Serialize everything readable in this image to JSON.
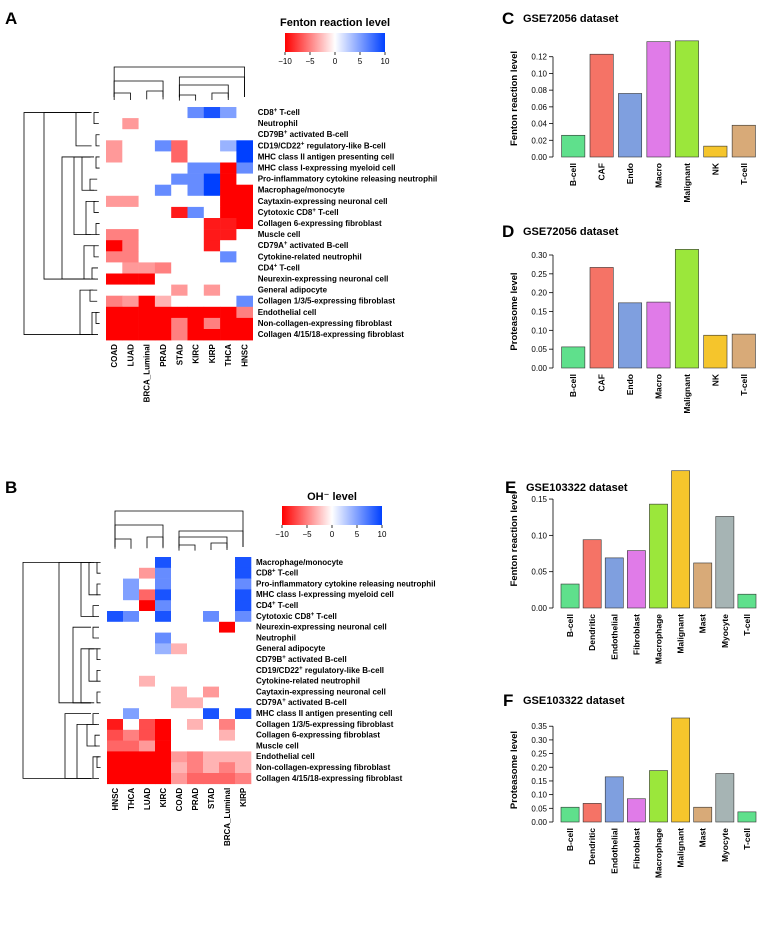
{
  "heatmaps": [
    {
      "letter": "A",
      "legend_title": "Fenton reaction level",
      "legend_ticks": [
        "−10",
        "−5",
        "0",
        "5",
        "10"
      ],
      "columns": [
        "COAD",
        "LUAD",
        "BRCA_Luminal",
        "PRAD",
        "STAD",
        "KIRC",
        "KIRP",
        "THCA",
        "HNSC"
      ],
      "rows": [
        {
          "base": "CD8",
          "sup": "+",
          "rest": " T-cell"
        },
        {
          "base": "Neutrophil",
          "sup": "",
          "rest": ""
        },
        {
          "base": "CD79B",
          "sup": "+",
          "rest": " activated B-cell"
        },
        {
          "base": "CD19/CD22",
          "sup": "+",
          "rest": " regulatory-like B-cell"
        },
        {
          "base": "MHC class II antigen presenting cell",
          "sup": "",
          "rest": ""
        },
        {
          "base": "MHC class I-expressing myeloid cell",
          "sup": "",
          "rest": ""
        },
        {
          "base": "Pro-inflammatory cytokine releasing neutrophil",
          "sup": "",
          "rest": ""
        },
        {
          "base": "Macrophage/monocyte",
          "sup": "",
          "rest": ""
        },
        {
          "base": "Caytaxin-expressing neuronal cell",
          "sup": "",
          "rest": ""
        },
        {
          "base": "Cytotoxic CD8",
          "sup": "+",
          "rest": " T-cell"
        },
        {
          "base": "Collagen 6-expressing fibroblast",
          "sup": "",
          "rest": ""
        },
        {
          "base": "Muscle cell",
          "sup": "",
          "rest": ""
        },
        {
          "base": "CD79A",
          "sup": "+",
          "rest": " activated B-cell"
        },
        {
          "base": "Cytokine-related neutrophil",
          "sup": "",
          "rest": ""
        },
        {
          "base": "CD4",
          "sup": "+",
          "rest": " T-cell"
        },
        {
          "base": "Neurexin-expressing neuronal cell",
          "sup": "",
          "rest": ""
        },
        {
          "base": "General adipocyte",
          "sup": "",
          "rest": ""
        },
        {
          "base": "Collagen 1/3/5-expressing fibroblast",
          "sup": "",
          "rest": ""
        },
        {
          "base": "Endothelial cell",
          "sup": "",
          "rest": ""
        },
        {
          "base": "Non-collagen-expressing fibroblast",
          "sup": "",
          "rest": ""
        },
        {
          "base": "Collagen 4/15/18-expressing fibroblast",
          "sup": "",
          "rest": ""
        }
      ],
      "values": [
        [
          0,
          0,
          0,
          0,
          0,
          6,
          9,
          5,
          0
        ],
        [
          0,
          -4,
          0,
          0,
          0,
          0,
          0,
          0,
          0
        ],
        [
          0,
          0,
          0,
          0,
          0,
          0,
          0,
          0,
          0
        ],
        [
          -4,
          0,
          0,
          6,
          -6,
          0,
          0,
          4,
          10
        ],
        [
          -4,
          0,
          0,
          0,
          -6,
          0,
          0,
          0,
          10
        ],
        [
          0,
          0,
          0,
          0,
          0,
          6,
          6,
          -10,
          6
        ],
        [
          0,
          0,
          0,
          0,
          6,
          6,
          10,
          -10,
          0
        ],
        [
          0,
          0,
          0,
          6,
          0,
          6,
          10,
          -10,
          -10
        ],
        [
          -4,
          -4,
          0,
          0,
          0,
          0,
          0,
          -10,
          -10
        ],
        [
          0,
          0,
          0,
          0,
          -9,
          6,
          0,
          -10,
          -10
        ],
        [
          0,
          0,
          0,
          0,
          0,
          0,
          -9,
          -9,
          -10
        ],
        [
          -5,
          -5,
          0,
          0,
          0,
          0,
          -9,
          -9,
          0
        ],
        [
          -10,
          -5,
          0,
          0,
          0,
          0,
          -9,
          0,
          0
        ],
        [
          -5,
          -5,
          0,
          0,
          0,
          0,
          0,
          6,
          0
        ],
        [
          0,
          -4,
          -4,
          -5,
          0,
          0,
          0,
          0,
          0
        ],
        [
          -10,
          -10,
          -10,
          0,
          0,
          0,
          0,
          0,
          0
        ],
        [
          0,
          0,
          0,
          0,
          -4,
          0,
          -4,
          0,
          0
        ],
        [
          -5,
          -4,
          -10,
          -3,
          0,
          0,
          0,
          0,
          6
        ],
        [
          -10,
          -10,
          -10,
          -10,
          -10,
          -10,
          -10,
          -10,
          -5
        ],
        [
          -10,
          -10,
          -10,
          -10,
          -5,
          -10,
          -5,
          -10,
          -10
        ],
        [
          -10,
          -10,
          -10,
          -10,
          -5,
          -10,
          -10,
          -10,
          -10
        ]
      ]
    },
    {
      "letter": "B",
      "legend_title": "OH⁻ level",
      "legend_ticks": [
        "−10",
        "−5",
        "0",
        "5",
        "10"
      ],
      "columns": [
        "HNSC",
        "THCA",
        "LUAD",
        "KIRC",
        "COAD",
        "PRAD",
        "STAD",
        "BRCA_Luminal",
        "KIRP"
      ],
      "rows": [
        {
          "base": "Macrophage/monocyte",
          "sup": "",
          "rest": ""
        },
        {
          "base": "CD8",
          "sup": "+",
          "rest": " T-cell"
        },
        {
          "base": "Pro-inflammatory cytokine releasing neutrophil",
          "sup": "",
          "rest": ""
        },
        {
          "base": "MHC class I-expressing myeloid cell",
          "sup": "",
          "rest": ""
        },
        {
          "base": "CD4",
          "sup": "+",
          "rest": " T-cell"
        },
        {
          "base": "Cytotoxic CD8",
          "sup": "+",
          "rest": " T-cell"
        },
        {
          "base": "Neurexin-expressing neuronal cell",
          "sup": "",
          "rest": ""
        },
        {
          "base": "Neutrophil",
          "sup": "",
          "rest": ""
        },
        {
          "base": "General adipocyte",
          "sup": "",
          "rest": ""
        },
        {
          "base": "CD79B",
          "sup": "+",
          "rest": " activated B-cell"
        },
        {
          "base": "CD19/CD22",
          "sup": "+",
          "rest": " regulatory-like B-cell"
        },
        {
          "base": "Cytokine-related neutrophil",
          "sup": "",
          "rest": ""
        },
        {
          "base": "Caytaxin-expressing neuronal cell",
          "sup": "",
          "rest": ""
        },
        {
          "base": "CD79A",
          "sup": "+",
          "rest": " activated B-cell"
        },
        {
          "base": "MHC class II antigen presenting cell",
          "sup": "",
          "rest": ""
        },
        {
          "base": "Collagen 1/3/5-expressing fibroblast",
          "sup": "",
          "rest": ""
        },
        {
          "base": "Collagen 6-expressing fibroblast",
          "sup": "",
          "rest": ""
        },
        {
          "base": "Muscle cell",
          "sup": "",
          "rest": ""
        },
        {
          "base": "Endothelial cell",
          "sup": "",
          "rest": ""
        },
        {
          "base": "Non-collagen-expressing fibroblast",
          "sup": "",
          "rest": ""
        },
        {
          "base": "Collagen 4/15/18-expressing fibroblast",
          "sup": "",
          "rest": ""
        }
      ],
      "values": [
        [
          0,
          0,
          0,
          9,
          0,
          0,
          0,
          0,
          9
        ],
        [
          0,
          0,
          -4,
          6,
          0,
          0,
          0,
          0,
          9
        ],
        [
          0,
          5,
          0,
          6,
          0,
          0,
          0,
          0,
          6
        ],
        [
          0,
          5,
          -6,
          9,
          0,
          0,
          0,
          0,
          9
        ],
        [
          0,
          0,
          -10,
          6,
          0,
          0,
          0,
          0,
          9
        ],
        [
          9,
          6,
          0,
          9,
          0,
          0,
          6,
          0,
          6
        ],
        [
          0,
          0,
          0,
          0,
          0,
          0,
          0,
          -10,
          0
        ],
        [
          0,
          0,
          0,
          6,
          0,
          0,
          0,
          0,
          0
        ],
        [
          0,
          0,
          0,
          4,
          -3,
          0,
          0,
          0,
          0
        ],
        [
          0,
          0,
          0,
          0,
          0,
          0,
          0,
          0,
          0
        ],
        [
          0,
          0,
          0,
          0,
          0,
          0,
          0,
          0,
          0
        ],
        [
          0,
          0,
          -3,
          0,
          0,
          0,
          0,
          0,
          0
        ],
        [
          0,
          0,
          0,
          0,
          -3,
          0,
          -4,
          0,
          0
        ],
        [
          0,
          0,
          0,
          0,
          -3,
          -3,
          0,
          0,
          0
        ],
        [
          0,
          5,
          0,
          0,
          0,
          0,
          9,
          0,
          9
        ],
        [
          -9,
          0,
          -7,
          -10,
          0,
          -3,
          0,
          -5,
          0
        ],
        [
          -7,
          -5,
          -7,
          -10,
          0,
          0,
          0,
          -3,
          0
        ],
        [
          -6,
          -6,
          -4,
          -10,
          0,
          0,
          0,
          0,
          0
        ],
        [
          -10,
          -10,
          -10,
          -10,
          -4,
          -5,
          -3,
          -3,
          -3
        ],
        [
          -10,
          -10,
          -10,
          -10,
          -3,
          -5,
          -3,
          -5,
          -3
        ],
        [
          -10,
          -10,
          -10,
          -10,
          -4,
          -6,
          -6,
          -6,
          -5
        ]
      ]
    }
  ],
  "chart_data": [
    {
      "type": "bar",
      "letter": "C",
      "title": "GSE72056 dataset",
      "ylabel": "Fenton reaction level",
      "xlabel": "",
      "categories": [
        "B-cell",
        "CAF",
        "Endo",
        "Macro",
        "Malignant",
        "NK",
        "T-cell"
      ],
      "values": [
        0.026,
        0.123,
        0.076,
        0.138,
        0.139,
        0.013,
        0.038
      ],
      "colors": [
        "#5fe08c",
        "#f57366",
        "#7f9fdf",
        "#e07be8",
        "#9be73b",
        "#f5c52c",
        "#d8aa78"
      ],
      "ylim": [
        0,
        0.14
      ],
      "yticks": [
        0.0,
        0.02,
        0.04,
        0.06,
        0.08,
        0.1,
        0.12
      ],
      "yticklabels": [
        "0.00",
        "0.02",
        "0.04",
        "0.06",
        "0.08",
        "0.10",
        "0.12"
      ]
    },
    {
      "type": "bar",
      "letter": "D",
      "title": "GSE72056 dataset",
      "ylabel": "Proteasome level",
      "xlabel": "",
      "categories": [
        "B-cell",
        "CAF",
        "Endo",
        "Macro",
        "Malignant",
        "NK",
        "T-cell"
      ],
      "values": [
        0.056,
        0.267,
        0.173,
        0.175,
        0.315,
        0.087,
        0.09
      ],
      "colors": [
        "#5fe08c",
        "#f57366",
        "#7f9fdf",
        "#e07be8",
        "#9be73b",
        "#f5c52c",
        "#d8aa78"
      ],
      "ylim": [
        0,
        0.3
      ],
      "yticks": [
        0.0,
        0.05,
        0.1,
        0.15,
        0.2,
        0.25,
        0.3
      ],
      "yticklabels": [
        "0.00",
        "0.05",
        "0.10",
        "0.15",
        "0.20",
        "0.25",
        "0.30"
      ]
    },
    {
      "type": "bar",
      "letter": "E",
      "title": "GSE103322 dataset",
      "ylabel": "Fenton reaction level",
      "xlabel": "",
      "categories": [
        "B-cell",
        "Dendritic",
        "Endothelial",
        "Fibroblast",
        "Macrophage",
        "Malignant",
        "Mast",
        "Myocyte",
        "T-cell"
      ],
      "values": [
        0.033,
        0.094,
        0.069,
        0.079,
        0.143,
        0.189,
        0.062,
        0.126,
        0.019
      ],
      "colors": [
        "#5fe08c",
        "#f57366",
        "#7f9fdf",
        "#e07be8",
        "#9be73b",
        "#f5c52c",
        "#d8aa78",
        "#a6b4b4",
        "#5fe08c"
      ],
      "ylim": [
        0,
        0.19
      ],
      "yticks": [
        0.0,
        0.05,
        0.1,
        0.15
      ],
      "yticklabels": [
        "0.00",
        "0.05",
        "0.10",
        "0.15"
      ]
    },
    {
      "type": "bar",
      "letter": "F",
      "title": "GSE103322 dataset",
      "ylabel": "Proteasome level",
      "xlabel": "",
      "categories": [
        "B-cell",
        "Dendritic",
        "Endothelial",
        "Fibroblast",
        "Macrophage",
        "Malignant",
        "Mast",
        "Myocyte",
        "T-cell"
      ],
      "values": [
        0.054,
        0.068,
        0.165,
        0.085,
        0.188,
        0.38,
        0.054,
        0.177,
        0.037
      ],
      "colors": [
        "#5fe08c",
        "#f57366",
        "#7f9fdf",
        "#e07be8",
        "#9be73b",
        "#f5c52c",
        "#d8aa78",
        "#a6b4b4",
        "#5fe08c"
      ],
      "ylim": [
        0,
        0.38
      ],
      "yticks": [
        0.0,
        0.05,
        0.1,
        0.15,
        0.2,
        0.25,
        0.3,
        0.35
      ],
      "yticklabels": [
        "0.00",
        "0.05",
        "0.10",
        "0.15",
        "0.20",
        "0.25",
        "0.30",
        "0.35"
      ]
    }
  ]
}
